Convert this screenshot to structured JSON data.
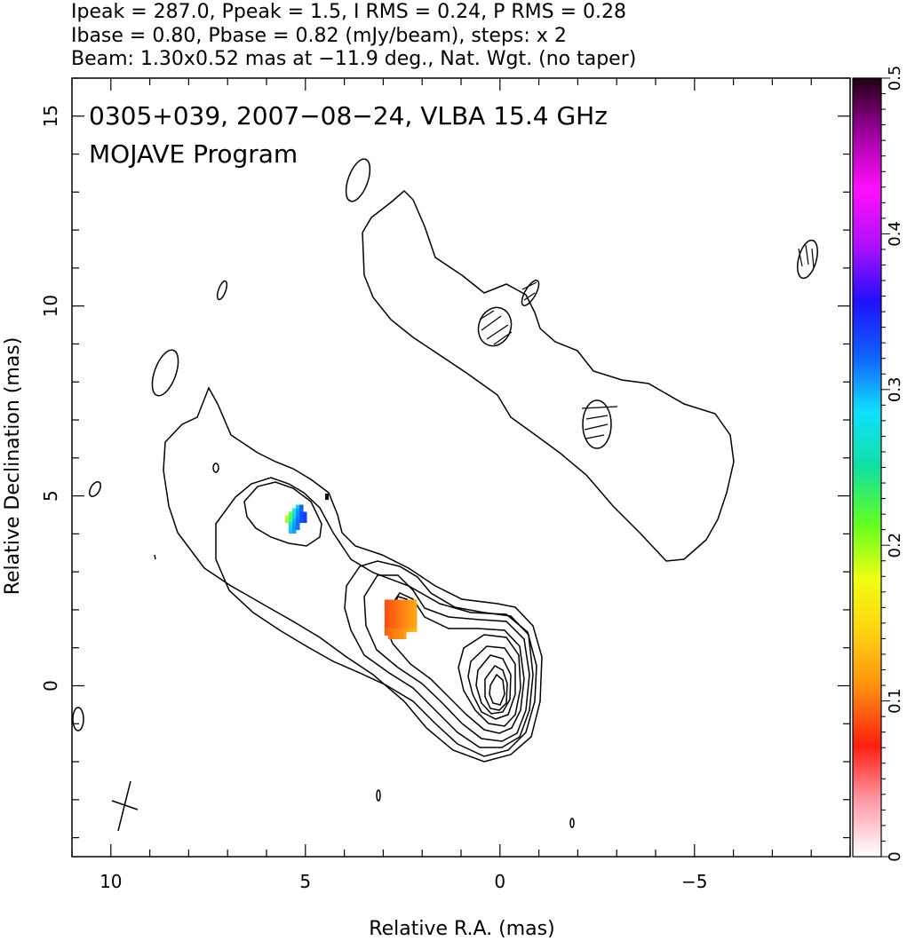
{
  "header": {
    "line1": "Ipeak = 287.0, Ppeak = 1.5, I RMS = 0.24, P RMS = 0.28",
    "line2": "Ibase = 0.80, Pbase = 0.82 (mJy/beam), steps: x 2",
    "line3": "Beam: 1.30x0.52 mas at −11.9 deg., Nat. Wgt. (no taper)"
  },
  "plot": {
    "title": "0305+039, 2007−08−24, VLBA 15.4 GHz",
    "subtitle": "MOJAVE Program"
  },
  "chart_data": {
    "type": "heatmap",
    "title": "0305+039, 2007−08−24, VLBA 15.4 GHz",
    "subtitle": "MOJAVE Program",
    "xlabel": "Relative R.A. (mas)",
    "ylabel": "Relative Declination (mas)",
    "xlim": [
      11,
      -9
    ],
    "ylim": [
      -4.5,
      16
    ],
    "x_ticks": [
      10,
      5,
      0,
      -5
    ],
    "x_tick_labels": [
      "10",
      "5",
      "0",
      "−5"
    ],
    "y_ticks": [
      0,
      5,
      10,
      15
    ],
    "y_tick_labels": [
      "0",
      "5",
      "10",
      "15"
    ],
    "colorbar": {
      "min": 0,
      "max": 0.5,
      "ticks": [
        0,
        0.1,
        0.2,
        0.3,
        0.4,
        0.5
      ],
      "tick_labels": [
        "0",
        "0.1",
        "0.2",
        "0.3",
        "0.4",
        "0.5"
      ],
      "colors": [
        "#ffffff",
        "#ff9aa8",
        "#ff2010",
        "#ff8a10",
        "#ffd010",
        "#f0ff10",
        "#60ff20",
        "#10e0a0",
        "#10e0ff",
        "#1060ff",
        "#2010ff",
        "#b010ff",
        "#ff10ff",
        "#a000a0",
        "#200010"
      ]
    },
    "stats": {
      "Ipeak_mJy_per_beam": 287.0,
      "Ppeak_mJy_per_beam": 1.5,
      "I_RMS": 0.24,
      "P_RMS": 0.28,
      "Ibase": 0.8,
      "Pbase": 0.82,
      "contour_step_factor": 2
    },
    "beam": {
      "major_mas": 1.3,
      "minor_mas": 0.52,
      "pa_deg": -11.9
    },
    "polarized_patches": [
      {
        "ra_center": 5.2,
        "dec_center": 4.3,
        "fractional_pol": 0.3,
        "color": "#10b0ff"
      },
      {
        "ra_center": 2.6,
        "dec_center": 1.8,
        "fractional_pol": 0.12,
        "color": "#ff7020"
      }
    ]
  }
}
